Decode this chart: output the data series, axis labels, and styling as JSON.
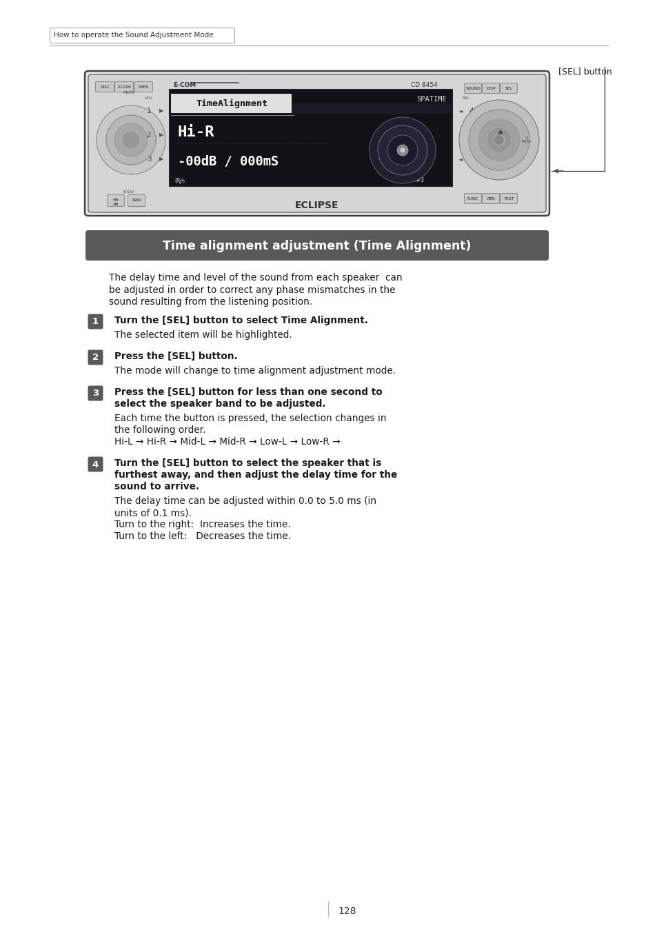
{
  "bg_color": "#ffffff",
  "page_number": "128",
  "header_text": "How to operate the Sound Adjustment Mode",
  "sel_button_label": "[SEL] button",
  "section_title": "Time alignment adjustment (Time Alignment)",
  "section_title_bg": "#595959",
  "section_title_color": "#ffffff",
  "intro_text1": "The delay time and level of the sound from each speaker  can",
  "intro_text2": "be adjusted in order to correct any phase mismatches in the",
  "intro_text3": "sound resulting from the listening position.",
  "steps": [
    {
      "num": "1",
      "bold": "Turn the [SEL] button to select Time Alignment.",
      "normal": [
        "The selected item will be highlighted."
      ]
    },
    {
      "num": "2",
      "bold": "Press the [SEL] button.",
      "normal": [
        "The mode will change to time alignment adjustment mode."
      ]
    },
    {
      "num": "3",
      "bold1": "Press the [SEL] button for less than one second to",
      "bold2": "select the speaker band to be adjusted.",
      "normal": [
        "Each time the button is pressed, the selection changes in",
        "the following order.",
        "Hi-L → Hi-R → Mid-L → Mid-R → Low-L → Low-R →"
      ]
    },
    {
      "num": "4",
      "bold1": "Turn the [SEL] button to select the speaker that is",
      "bold2": "furthest away, and then adjust the delay time for the",
      "bold3": "sound to arrive.",
      "normal": [
        "The delay time can be adjusted within 0.0 to 5.0 ms (in",
        "units of 0.1 ms).",
        "Turn to the right:  Increases the time.",
        "Turn to the left:   Decreases the time."
      ]
    }
  ],
  "num_bg_color": "#595959",
  "num_text_color": "#ffffff",
  "text_color": "#1a1a1a",
  "body_font_size": 9.8,
  "bold_font_size": 9.8,
  "title_font_size": 12.5,
  "header_font_size": 7.5
}
